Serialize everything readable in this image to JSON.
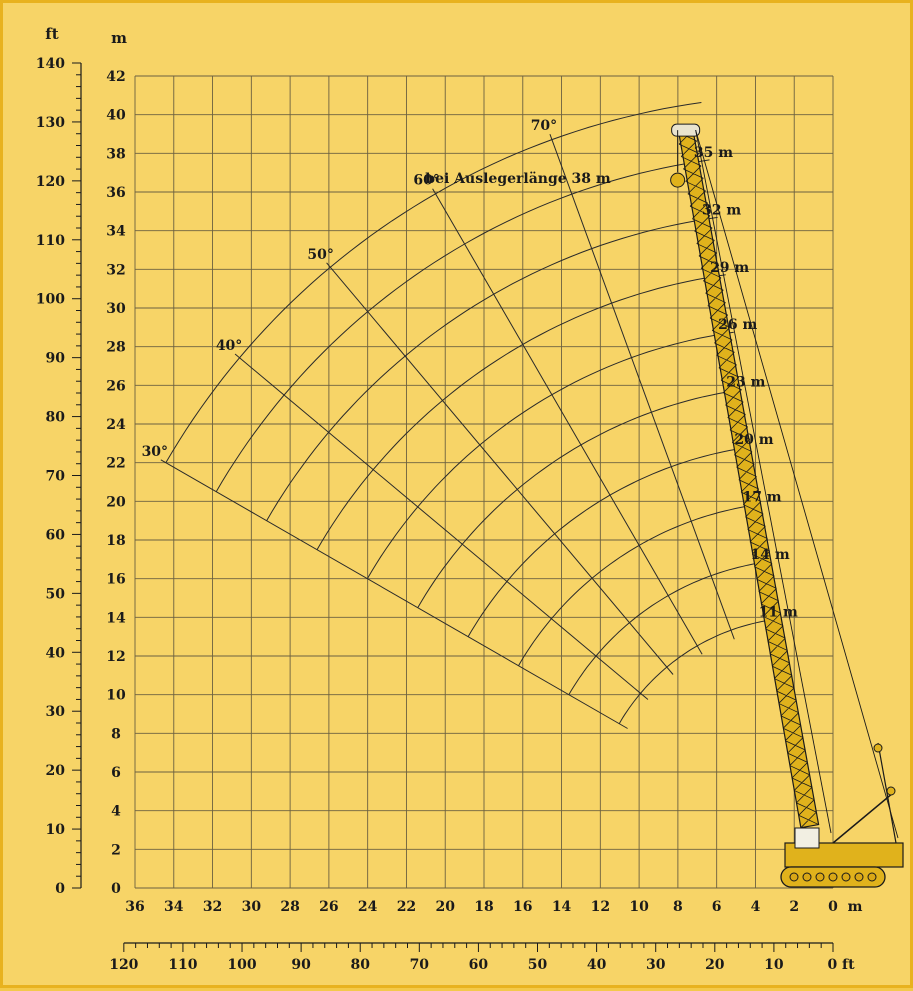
{
  "chart_data": {
    "type": "line",
    "title": "bei Auslegerlänge 38 m",
    "x_axis_m": {
      "label": "m",
      "range": [
        36,
        0
      ],
      "ticks": [
        36,
        34,
        32,
        30,
        28,
        26,
        24,
        22,
        20,
        18,
        16,
        14,
        12,
        10,
        8,
        6,
        4,
        2,
        0
      ]
    },
    "x_axis_ft": {
      "label": "ft",
      "range": [
        120,
        0
      ],
      "ticks": [
        120,
        110,
        100,
        90,
        80,
        70,
        60,
        50,
        40,
        30,
        20,
        10,
        0
      ]
    },
    "y_axis_m": {
      "label": "m",
      "range": [
        0,
        42
      ],
      "ticks": [
        0,
        2,
        4,
        6,
        8,
        10,
        12,
        14,
        16,
        18,
        20,
        22,
        24,
        26,
        28,
        30,
        32,
        34,
        36,
        38,
        40,
        42
      ]
    },
    "y_axis_ft": {
      "label": "ft",
      "range": [
        0,
        140
      ],
      "ticks": [
        0,
        10,
        20,
        30,
        40,
        50,
        60,
        70,
        80,
        90,
        100,
        110,
        120,
        130,
        140
      ]
    },
    "grid": true,
    "pivot": {
      "x": 1.5,
      "y": 3
    },
    "boom_lengths": [
      {
        "label": "11 m",
        "length": 11
      },
      {
        "label": "14 m",
        "length": 14
      },
      {
        "label": "17 m",
        "length": 17
      },
      {
        "label": "20 m",
        "length": 20
      },
      {
        "label": "23 m",
        "length": 23
      },
      {
        "label": "26 m",
        "length": 26
      },
      {
        "label": "29 m",
        "length": 29
      },
      {
        "label": "32 m",
        "length": 32
      },
      {
        "label": "35 m",
        "length": 35
      },
      {
        "label": "38 m",
        "length": 38
      }
    ],
    "angles": [
      {
        "label": "30°",
        "deg": 30
      },
      {
        "label": "40°",
        "deg": 40
      },
      {
        "label": "50°",
        "deg": 50
      },
      {
        "label": "60°",
        "deg": 60
      },
      {
        "label": "70°",
        "deg": 70
      }
    ],
    "angle_range_deg": [
      30,
      82
    ]
  },
  "colors": {
    "background": "#f7d467",
    "grid": "#6b6040",
    "curves": "#2a2a2a",
    "boom": "#e0b21c"
  }
}
